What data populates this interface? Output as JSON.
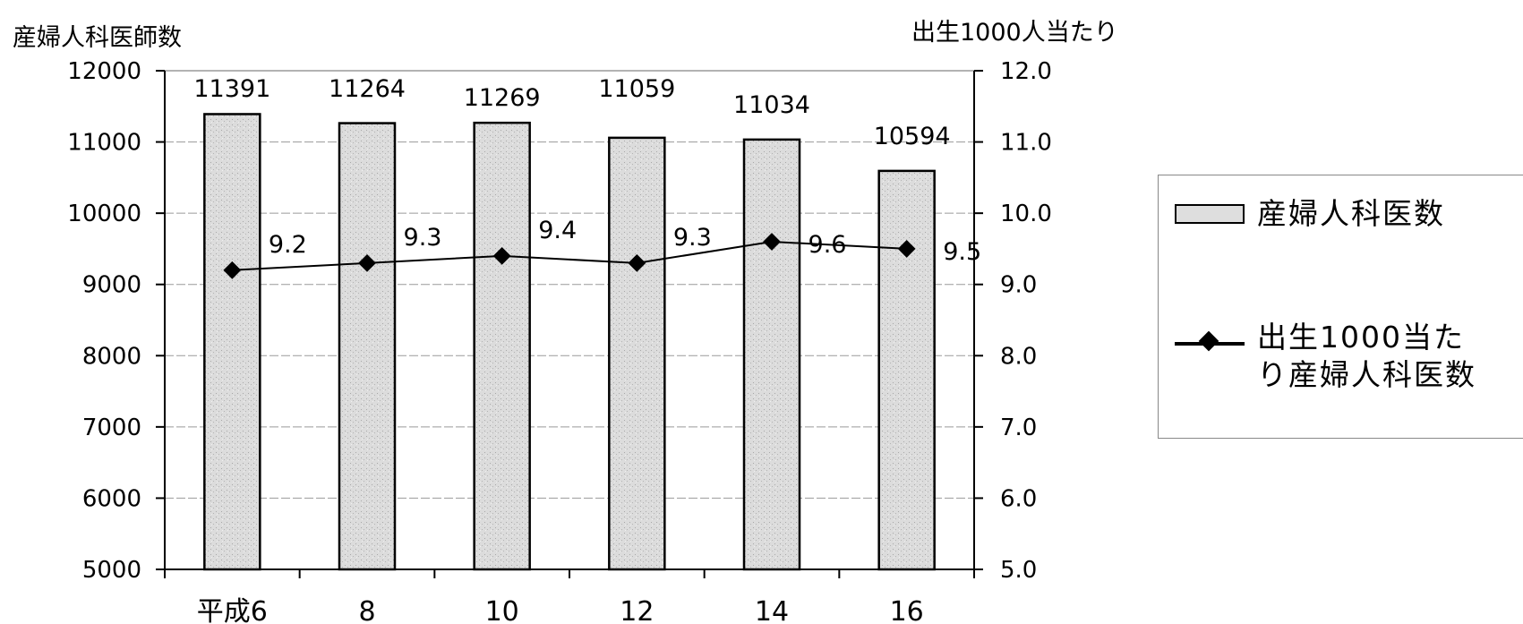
{
  "chart_data": {
    "type": "bar",
    "categories": [
      "平成6",
      "8",
      "10",
      "12",
      "14",
      "16"
    ],
    "ylabel_left": "産婦人科医師数",
    "ylabel_right": "出生1000人当たり",
    "ylim_left": [
      5000,
      12000
    ],
    "ylim_right": [
      5.0,
      12.0
    ],
    "yticks_left": [
      "12000",
      "11000",
      "10000",
      "9000",
      "8000",
      "7000",
      "6000",
      "5000"
    ],
    "yticks_right": [
      "12.0",
      "11.0",
      "10.0",
      "9.0",
      "8.0",
      "7.0",
      "6.0",
      "5.0"
    ],
    "grid": true,
    "legend_position": "right",
    "series": [
      {
        "name": "産婦人科医数",
        "type": "bar",
        "axis": "left",
        "values": [
          11391,
          11264,
          11269,
          11059,
          11034,
          10594
        ],
        "labels": [
          "11391",
          "11264",
          "11269",
          "11059",
          "11034",
          "10594"
        ]
      },
      {
        "name": "出生1000当たり産婦人科医数",
        "type": "line",
        "axis": "right",
        "values": [
          9.2,
          9.3,
          9.4,
          9.3,
          9.6,
          9.5
        ],
        "labels": [
          "9.2",
          "9.3",
          "9.4",
          "9.3",
          "9.6",
          "9.5"
        ]
      }
    ],
    "colors": {
      "bar_fill": "#d9d9d9",
      "bar_stroke": "#000000",
      "line": "#000000",
      "grid": "#9a9a9a"
    }
  },
  "legend": {
    "bar_label": "産婦人科医数",
    "line_label": "出生1000当た\nり産婦人科医数"
  }
}
